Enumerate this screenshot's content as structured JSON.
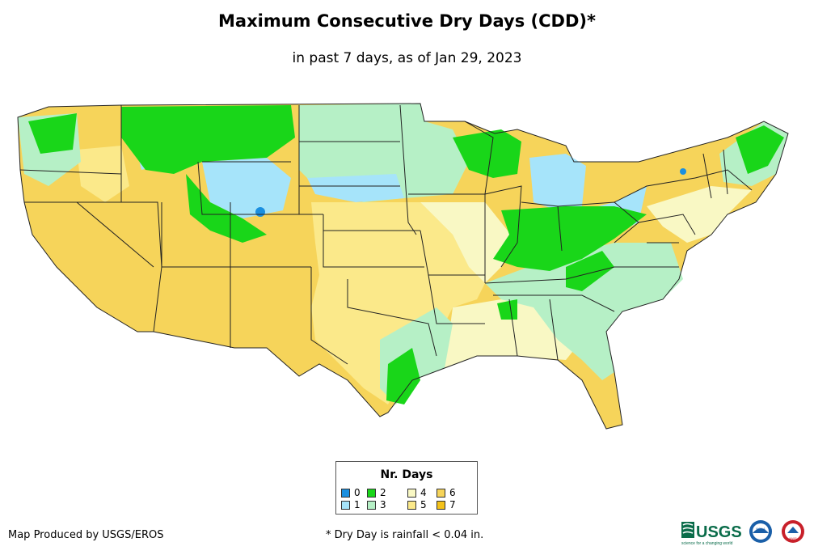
{
  "title": "Maximum Consecutive Dry Days (CDD)*",
  "subtitle": "in past 7 days, as of Jan 29, 2023",
  "legend": {
    "title": "Nr. Days",
    "items": [
      {
        "label": "0",
        "color": "#1a8fe0"
      },
      {
        "label": "1",
        "color": "#a6e4fa"
      },
      {
        "label": "2",
        "color": "#19d619"
      },
      {
        "label": "3",
        "color": "#b6f0c6"
      },
      {
        "label": "4",
        "color": "#f9f8c4"
      },
      {
        "label": "5",
        "color": "#fbe98a"
      },
      {
        "label": "6",
        "color": "#f6d45a"
      },
      {
        "label": "7",
        "color": "#f4c21a"
      }
    ]
  },
  "credit": "Map Produced by USGS/EROS",
  "footnote": "* Dry Day is rainfall < 0.04 in.",
  "logos": {
    "usgs_text": "USGS",
    "usgs_tagline": "science for a changing world",
    "noaa_text": "NOAA",
    "nws_text": "NWS"
  }
}
